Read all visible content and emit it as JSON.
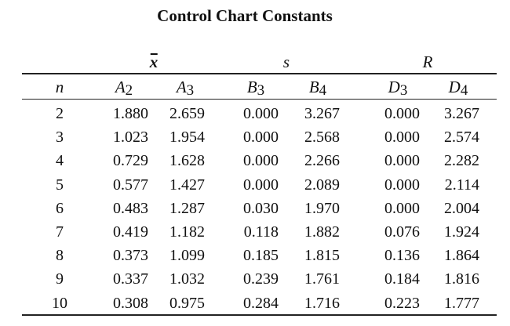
{
  "title": "Control Chart Constants",
  "groups": {
    "xbar": "x",
    "s": "s",
    "r": "R"
  },
  "columns": {
    "n": "n",
    "a2": {
      "letter": "A",
      "sub": "2"
    },
    "a3": {
      "letter": "A",
      "sub": "3"
    },
    "b3": {
      "letter": "B",
      "sub": "3"
    },
    "b4": {
      "letter": "B",
      "sub": "4"
    },
    "d3": {
      "letter": "D",
      "sub": "3"
    },
    "d4": {
      "letter": "D",
      "sub": "4"
    }
  },
  "rows": [
    {
      "n": "2",
      "a2": "1.880",
      "a3": "2.659",
      "b3": "0.000",
      "b4": "3.267",
      "d3": "0.000",
      "d4": "3.267"
    },
    {
      "n": "3",
      "a2": "1.023",
      "a3": "1.954",
      "b3": "0.000",
      "b4": "2.568",
      "d3": "0.000",
      "d4": "2.574"
    },
    {
      "n": "4",
      "a2": "0.729",
      "a3": "1.628",
      "b3": "0.000",
      "b4": "2.266",
      "d3": "0.000",
      "d4": "2.282"
    },
    {
      "n": "5",
      "a2": "0.577",
      "a3": "1.427",
      "b3": "0.000",
      "b4": "2.089",
      "d3": "0.000",
      "d4": "2.114"
    },
    {
      "n": "6",
      "a2": "0.483",
      "a3": "1.287",
      "b3": "0.030",
      "b4": "1.970",
      "d3": "0.000",
      "d4": "2.004"
    },
    {
      "n": "7",
      "a2": "0.419",
      "a3": "1.182",
      "b3": "0.118",
      "b4": "1.882",
      "d3": "0.076",
      "d4": "1.924"
    },
    {
      "n": "8",
      "a2": "0.373",
      "a3": "1.099",
      "b3": "0.185",
      "b4": "1.815",
      "d3": "0.136",
      "d4": "1.864"
    },
    {
      "n": "9",
      "a2": "0.337",
      "a3": "1.032",
      "b3": "0.239",
      "b4": "1.761",
      "d3": "0.184",
      "d4": "1.816"
    },
    {
      "n": "10",
      "a2": "0.308",
      "a3": "0.975",
      "b3": "0.284",
      "b4": "1.716",
      "d3": "0.223",
      "d4": "1.777"
    }
  ]
}
